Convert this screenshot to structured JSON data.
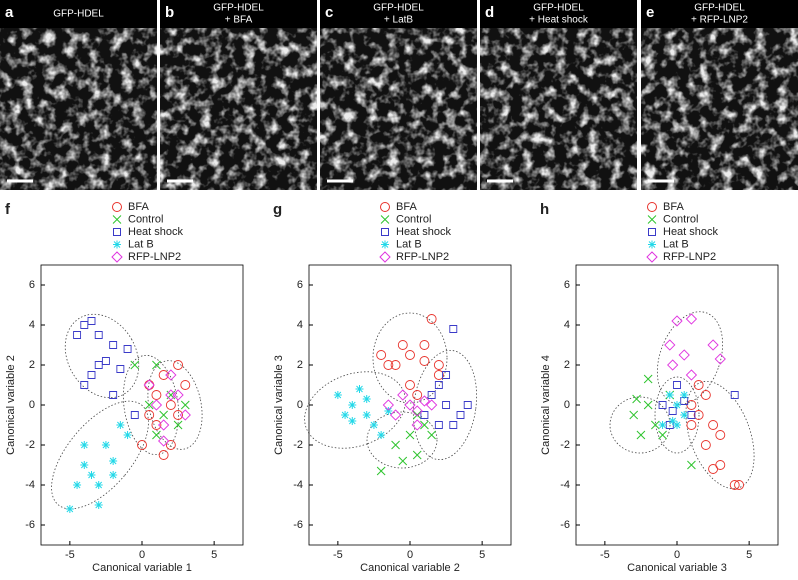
{
  "images": [
    {
      "letter": "a",
      "title_lines": [
        "GFP-HDEL"
      ]
    },
    {
      "letter": "b",
      "title_lines": [
        "GFP-HDEL",
        "+ BFA"
      ]
    },
    {
      "letter": "c",
      "title_lines": [
        "GFP-HDEL",
        "+ LatB"
      ]
    },
    {
      "letter": "d",
      "title_lines": [
        "GFP-HDEL",
        "+ Heat shock"
      ]
    },
    {
      "letter": "e",
      "title_lines": [
        "GFP-HDEL",
        "+ RFP-LNP2"
      ]
    }
  ],
  "chart_data": [
    {
      "type": "scatter",
      "panel": "f",
      "x_label": "Canonical variable 1",
      "y_label": "Canonical variable 2",
      "xlim": [
        -7,
        7
      ],
      "ylim": [
        -7,
        7
      ],
      "xticks": [
        -5,
        0,
        5
      ],
      "yticks": [
        -6,
        -4,
        -2,
        0,
        2,
        4,
        6
      ],
      "series": [
        {
          "name": "BFA",
          "color": "#e8312a",
          "marker": "circle",
          "x": [
            0.5,
            1,
            1.5,
            2,
            2.5,
            1,
            2,
            3,
            0,
            1.5,
            2.5,
            0.5
          ],
          "values": [
            1,
            0.5,
            1.5,
            0,
            -0.5,
            -1,
            -2,
            1,
            -2,
            -2.5,
            2,
            -0.5
          ]
        },
        {
          "name": "Control",
          "color": "#2ec42e",
          "marker": "x",
          "x": [
            1,
            -0.5,
            1.5,
            2,
            0.5,
            2.5,
            1,
            3
          ],
          "values": [
            2,
            2,
            -0.5,
            0.5,
            0,
            -1,
            -1.5,
            0
          ]
        },
        {
          "name": "Heat shock",
          "color": "#3a3ac8",
          "marker": "square",
          "x": [
            -4,
            -3.5,
            -3,
            -2,
            -1,
            -4.5,
            -3,
            -4,
            -2.5,
            -1.5,
            -3.5,
            -2,
            -0.5
          ],
          "values": [
            4,
            4.2,
            3.5,
            3,
            2.8,
            3.5,
            2,
            1,
            2.2,
            1.8,
            1.5,
            0.5,
            -0.5
          ]
        },
        {
          "name": "Lat B",
          "color": "#22d8e8",
          "marker": "asterisk",
          "x": [
            -5,
            -4,
            -3,
            -2.5,
            -3.5,
            -2,
            -1,
            -4.5,
            -3,
            -1.5,
            -2,
            -4
          ],
          "values": [
            -5.2,
            -3,
            -4,
            -2,
            -3.5,
            -2.8,
            -1.5,
            -4,
            -5,
            -1,
            -3.5,
            -2
          ]
        },
        {
          "name": "RFP-LNP2",
          "color": "#e034e0",
          "marker": "diamond",
          "x": [
            1,
            2,
            1.5,
            2.5,
            0.5,
            3,
            1.5,
            2
          ],
          "values": [
            0,
            0.5,
            -1,
            0.5,
            1,
            -0.5,
            -1.8,
            1.5
          ]
        }
      ]
    },
    {
      "type": "scatter",
      "panel": "g",
      "x_label": "Canonical variable 2",
      "y_label": "Canonical variable 3",
      "xlim": [
        -7,
        7
      ],
      "ylim": [
        -7,
        7
      ],
      "xticks": [
        -5,
        0,
        5
      ],
      "yticks": [
        -6,
        -4,
        -2,
        0,
        2,
        4,
        6
      ],
      "series": [
        {
          "name": "BFA",
          "color": "#e8312a",
          "marker": "circle",
          "x": [
            -2,
            -1,
            0,
            1,
            1.5,
            2,
            0,
            -0.5,
            1,
            0.5,
            2,
            -1.5
          ],
          "values": [
            2.5,
            2,
            2.5,
            3,
            4.3,
            2,
            1,
            3,
            2.2,
            0.5,
            1.5,
            2
          ]
        },
        {
          "name": "Control",
          "color": "#2ec42e",
          "marker": "x",
          "x": [
            -1,
            0,
            0.5,
            -2,
            1,
            -0.5,
            0.5,
            1.5
          ],
          "values": [
            -2,
            -1.5,
            -2.5,
            -3.3,
            -1,
            -2.8,
            -0.5,
            -1.5
          ]
        },
        {
          "name": "Heat shock",
          "color": "#3a3ac8",
          "marker": "square",
          "x": [
            2,
            3,
            2.5,
            3.5,
            1.5,
            3,
            2,
            4,
            2.5,
            1
          ],
          "values": [
            1,
            3.8,
            0,
            -0.5,
            0.5,
            -1,
            -1,
            0,
            1.5,
            -0.5
          ]
        },
        {
          "name": "Lat B",
          "color": "#22d8e8",
          "marker": "asterisk",
          "x": [
            -5,
            -4.5,
            -4,
            -3,
            -3.5,
            -2.5,
            -2,
            -3,
            -4,
            -1.5
          ],
          "values": [
            0.5,
            -0.5,
            0,
            -0.5,
            0.8,
            -1,
            -1.5,
            0.3,
            -0.8,
            -0.3
          ]
        },
        {
          "name": "RFP-LNP2",
          "color": "#e034e0",
          "marker": "diamond",
          "x": [
            0,
            -1,
            0.5,
            1,
            -0.5,
            -1.5,
            0.5,
            1.5
          ],
          "values": [
            0,
            -0.5,
            -0.3,
            0.2,
            0.5,
            0,
            -1,
            0
          ]
        }
      ]
    },
    {
      "type": "scatter",
      "panel": "h",
      "x_label": "Canonical variable 3",
      "y_label": "Canonical variable 4",
      "xlim": [
        -7,
        7
      ],
      "ylim": [
        -7,
        7
      ],
      "xticks": [
        -5,
        0,
        5
      ],
      "yticks": [
        -6,
        -4,
        -2,
        0,
        2,
        4,
        6
      ],
      "series": [
        {
          "name": "BFA",
          "color": "#e8312a",
          "marker": "circle",
          "x": [
            1,
            1.5,
            2,
            2.5,
            3,
            4,
            4.3,
            2,
            1.5,
            3,
            2.5,
            1
          ],
          "values": [
            0,
            -0.5,
            0.5,
            -1,
            -3,
            -4,
            -4,
            -2,
            1,
            -1.5,
            -3.2,
            -1
          ]
        },
        {
          "name": "Control",
          "color": "#2ec42e",
          "marker": "x",
          "x": [
            -2,
            -3,
            -2.5,
            -1.5,
            -2,
            -1,
            1,
            -0.5,
            -2.8
          ],
          "values": [
            1.3,
            -0.5,
            -1.5,
            -1,
            0,
            -1.5,
            -3,
            0.5,
            0.3
          ]
        },
        {
          "name": "Heat shock",
          "color": "#3a3ac8",
          "marker": "square",
          "x": [
            0,
            -1,
            -0.5,
            1,
            4,
            0.5,
            -0.3
          ],
          "values": [
            1,
            0,
            -1,
            -0.5,
            0.5,
            0.2,
            -0.3
          ]
        },
        {
          "name": "Lat B",
          "color": "#22d8e8",
          "marker": "asterisk",
          "x": [
            0,
            -0.5,
            0.5,
            -1,
            0,
            0.5,
            -0.3
          ],
          "values": [
            0,
            0.5,
            -0.5,
            -1,
            -1,
            0.5,
            -0.8
          ]
        },
        {
          "name": "RFP-LNP2",
          "color": "#e034e0",
          "marker": "diamond",
          "x": [
            0,
            1,
            -0.5,
            0.5,
            2.5,
            3,
            -0.3,
            1
          ],
          "values": [
            4.2,
            4.3,
            3,
            2.5,
            3,
            2.3,
            2,
            1.5
          ]
        }
      ]
    }
  ]
}
